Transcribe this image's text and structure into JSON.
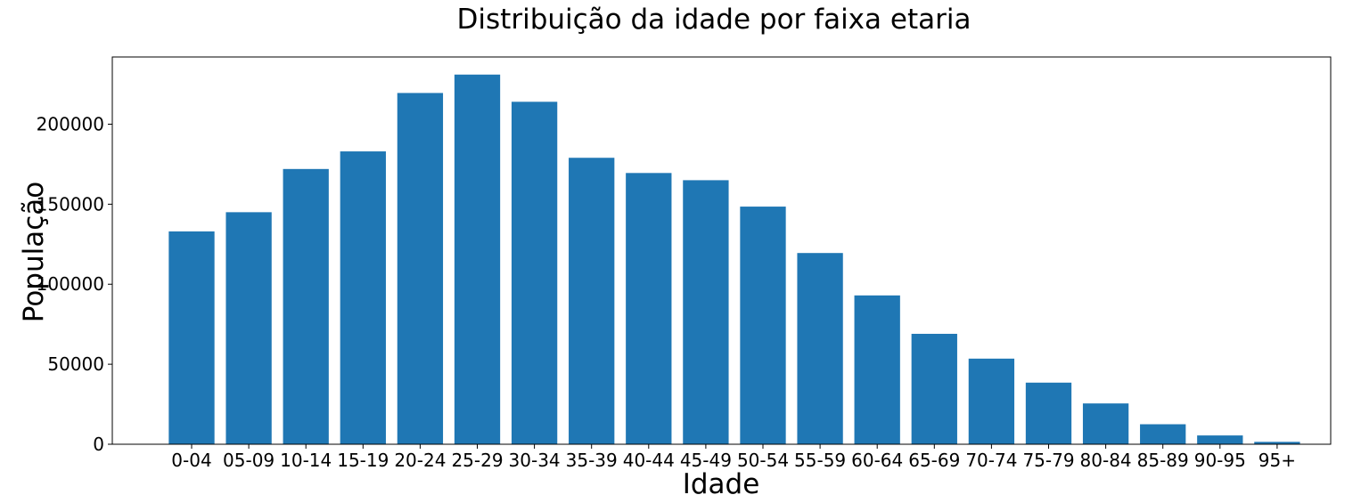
{
  "chart_data": {
    "type": "bar",
    "title": "Distribuição da idade por faixa etaria",
    "xlabel": "Idade",
    "ylabel": "População",
    "categories": [
      "0-04",
      "05-09",
      "10-14",
      "15-19",
      "20-24",
      "25-29",
      "30-34",
      "35-39",
      "40-44",
      "45-49",
      "50-54",
      "55-59",
      "60-64",
      "65-69",
      "70-74",
      "75-79",
      "80-84",
      "85-89",
      "90-95",
      "95+"
    ],
    "values": [
      133000,
      145000,
      172000,
      183000,
      219500,
      231000,
      214000,
      179000,
      169500,
      165000,
      148500,
      119500,
      93000,
      69000,
      53500,
      38500,
      25500,
      12500,
      5500,
      1500
    ],
    "ylim": [
      0,
      242000
    ],
    "yticks": [
      0,
      50000,
      100000,
      150000,
      200000
    ],
    "ytick_labels": [
      "0",
      "50000",
      "100000",
      "150000",
      "200000"
    ],
    "bar_color": "#1f77b4",
    "grid": false,
    "legend": "none"
  }
}
